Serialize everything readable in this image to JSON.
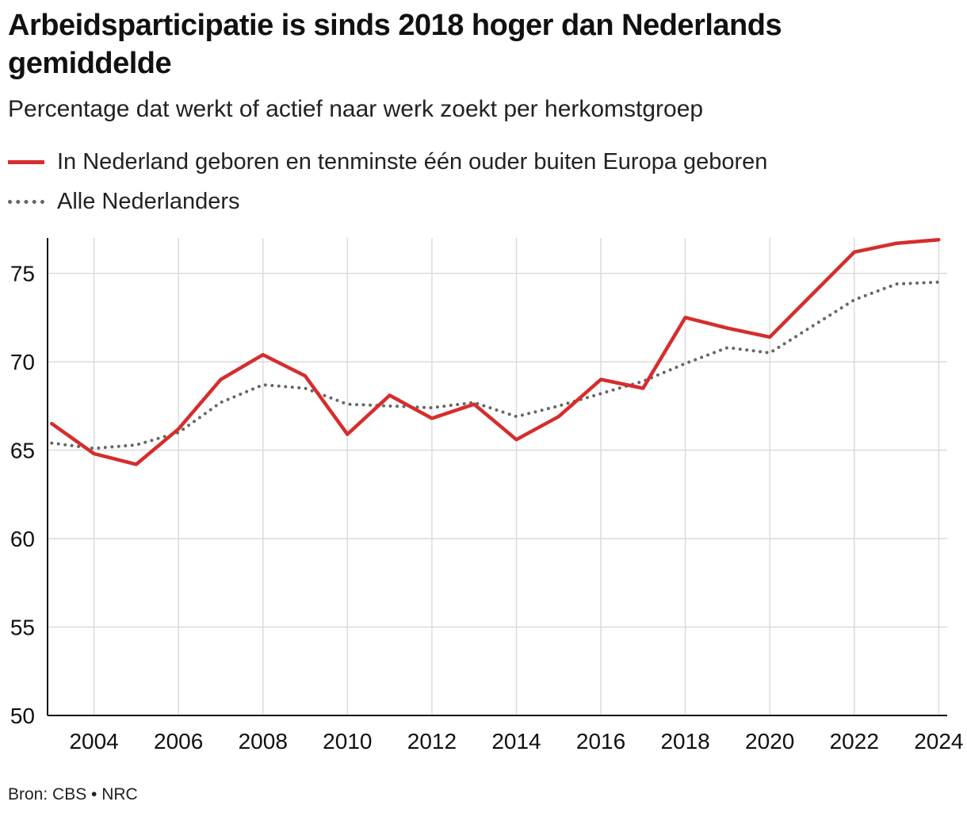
{
  "chart_data": {
    "type": "line",
    "title": "Arbeidsparticipatie is sinds 2018 hoger dan Nederlands gemiddelde",
    "subtitle": "Percentage dat werkt of actief naar werk zoekt per herkomstgroep",
    "x": [
      2003,
      2004,
      2005,
      2006,
      2007,
      2008,
      2009,
      2010,
      2011,
      2012,
      2013,
      2014,
      2015,
      2016,
      2017,
      2018,
      2019,
      2020,
      2021,
      2022,
      2023,
      2024
    ],
    "xticks": [
      2004,
      2006,
      2008,
      2010,
      2012,
      2014,
      2016,
      2018,
      2020,
      2022,
      2024
    ],
    "yticks": [
      50,
      55,
      60,
      65,
      70,
      75
    ],
    "xlim": [
      2002.9,
      2024.2
    ],
    "ylim": [
      50,
      77
    ],
    "grid": true,
    "legend_position": "top-left",
    "series": [
      {
        "name": "In Nederland geboren en tenminste één ouder buiten Europa geboren",
        "color": "#d62d2d",
        "style": "solid",
        "values": [
          66.5,
          64.8,
          64.2,
          66.2,
          69.0,
          70.4,
          69.2,
          65.9,
          68.1,
          66.8,
          67.6,
          65.6,
          66.9,
          69.0,
          68.5,
          72.5,
          71.9,
          71.4,
          73.8,
          76.2,
          76.7,
          76.9
        ]
      },
      {
        "name": "Alle Nederlanders",
        "color": "#666666",
        "style": "dotted",
        "values": [
          65.4,
          65.1,
          65.3,
          66.0,
          67.7,
          68.7,
          68.5,
          67.6,
          67.5,
          67.4,
          67.7,
          66.9,
          67.5,
          68.2,
          68.9,
          69.9,
          70.8,
          70.5,
          72.0,
          73.5,
          74.4,
          74.5
        ]
      }
    ]
  },
  "source": "Bron: CBS • NRC"
}
